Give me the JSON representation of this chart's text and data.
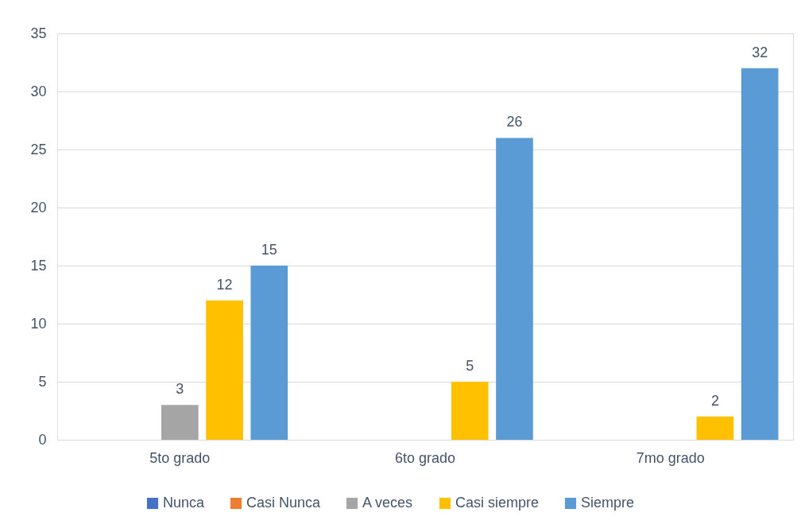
{
  "chart_data": {
    "type": "bar",
    "categories": [
      "5to grado",
      "6to grado",
      "7mo grado"
    ],
    "series": [
      {
        "name": "Nunca",
        "color": "#4472c4",
        "values": [
          null,
          null,
          null
        ]
      },
      {
        "name": "Casi Nunca",
        "color": "#ed7d31",
        "values": [
          null,
          null,
          null
        ]
      },
      {
        "name": "A veces",
        "color": "#a5a5a5",
        "values": [
          3,
          null,
          null
        ]
      },
      {
        "name": "Casi siempre",
        "color": "#ffc000",
        "values": [
          12,
          5,
          2
        ]
      },
      {
        "name": "Siempre",
        "color": "#5b9bd5",
        "values": [
          15,
          26,
          32
        ]
      }
    ],
    "ylim": [
      0,
      35
    ],
    "yticks": [
      0,
      5,
      10,
      15,
      20,
      25,
      30,
      35
    ],
    "grid": "y",
    "legend": "bottom",
    "data_labels": true
  }
}
